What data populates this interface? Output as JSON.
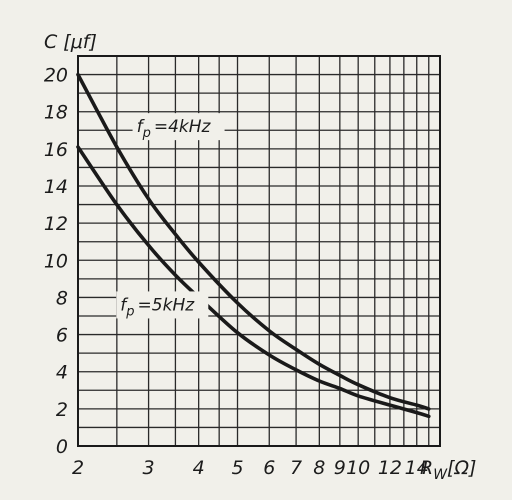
{
  "chart_data": {
    "type": "line",
    "x_scale": "log",
    "y_scale": "linear",
    "xlim": [
      2,
      16
    ],
    "ylim": [
      0,
      21
    ],
    "grid": true,
    "y_label": "C [μf]",
    "x_label_main": "R",
    "x_label_sub": "W",
    "x_label_unit": "[Ω]",
    "x_ticks": [
      {
        "value": 2,
        "label": "2"
      },
      {
        "value": 3,
        "label": "3"
      },
      {
        "value": 4,
        "label": "4"
      },
      {
        "value": 5,
        "label": "5"
      },
      {
        "value": 6,
        "label": "6"
      },
      {
        "value": 7,
        "label": "7"
      },
      {
        "value": 8,
        "label": "8"
      },
      {
        "value": 9,
        "label": "9"
      },
      {
        "value": 10,
        "label": "10"
      },
      {
        "value": 12,
        "label": "12"
      },
      {
        "value": 14,
        "label": "14"
      }
    ],
    "y_ticks": [
      {
        "value": 0,
        "label": "0"
      },
      {
        "value": 2,
        "label": "2"
      },
      {
        "value": 4,
        "label": "4"
      },
      {
        "value": 6,
        "label": "6"
      },
      {
        "value": 8,
        "label": "8"
      },
      {
        "value": 10,
        "label": "10"
      },
      {
        "value": 12,
        "label": "12"
      },
      {
        "value": 14,
        "label": "14"
      },
      {
        "value": 16,
        "label": "16"
      },
      {
        "value": 18,
        "label": "18"
      },
      {
        "value": 20,
        "label": "20"
      }
    ],
    "series": [
      {
        "label_main": "f",
        "label_sub": "p",
        "label_value": "=4kHz",
        "label_anchor": {
          "x": 2.8,
          "y": 16.9
        },
        "x": [
          2,
          2.5,
          3,
          3.5,
          4,
          5,
          6,
          7,
          8,
          9,
          10,
          12,
          14,
          15
        ],
        "y": [
          20,
          16.1,
          13.3,
          11.4,
          9.9,
          7.7,
          6.2,
          5.2,
          4.4,
          3.8,
          3.3,
          2.6,
          2.2,
          2.0
        ]
      },
      {
        "label_main": "f",
        "label_sub": "p",
        "label_value": "=5kHz",
        "label_anchor": {
          "x": 2.55,
          "y": 7.3
        },
        "x": [
          2,
          2.5,
          3,
          3.5,
          4,
          5,
          6,
          7,
          8,
          9,
          10,
          12,
          14,
          15
        ],
        "y": [
          16.1,
          13.0,
          10.8,
          9.2,
          8.0,
          6.1,
          4.9,
          4.1,
          3.5,
          3.1,
          2.7,
          2.2,
          1.8,
          1.6
        ]
      }
    ]
  }
}
